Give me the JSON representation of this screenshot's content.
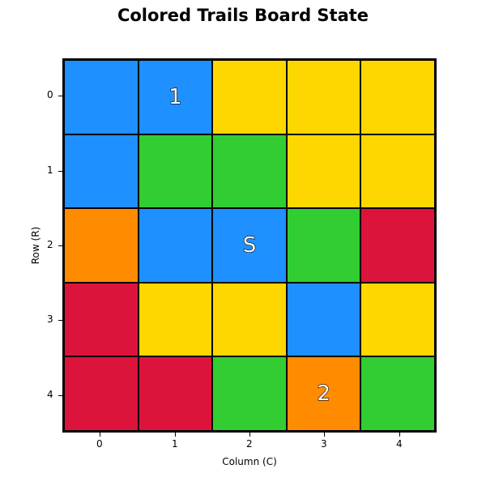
{
  "title": "Colored Trails Board State",
  "xlabel": "Column (C)",
  "ylabel": "Row (R)",
  "columns": [
    "0",
    "1",
    "2",
    "3",
    "4"
  ],
  "rows": [
    "0",
    "1",
    "2",
    "3",
    "4"
  ],
  "colors": {
    "blue": "#1e90ff",
    "yellow": "#ffd700",
    "green": "#32cd32",
    "orange": "#ff8c00",
    "red": "#dc143c"
  },
  "board": [
    [
      "blue",
      "blue",
      "yellow",
      "yellow",
      "yellow"
    ],
    [
      "blue",
      "green",
      "green",
      "yellow",
      "yellow"
    ],
    [
      "orange",
      "blue",
      "blue",
      "green",
      "red"
    ],
    [
      "red",
      "yellow",
      "yellow",
      "blue",
      "yellow"
    ],
    [
      "red",
      "red",
      "green",
      "orange",
      "green"
    ]
  ],
  "markers": [
    {
      "row": 0,
      "col": 1,
      "label": "1"
    },
    {
      "row": 2,
      "col": 2,
      "label": "S"
    },
    {
      "row": 4,
      "col": 3,
      "label": "2"
    }
  ]
}
